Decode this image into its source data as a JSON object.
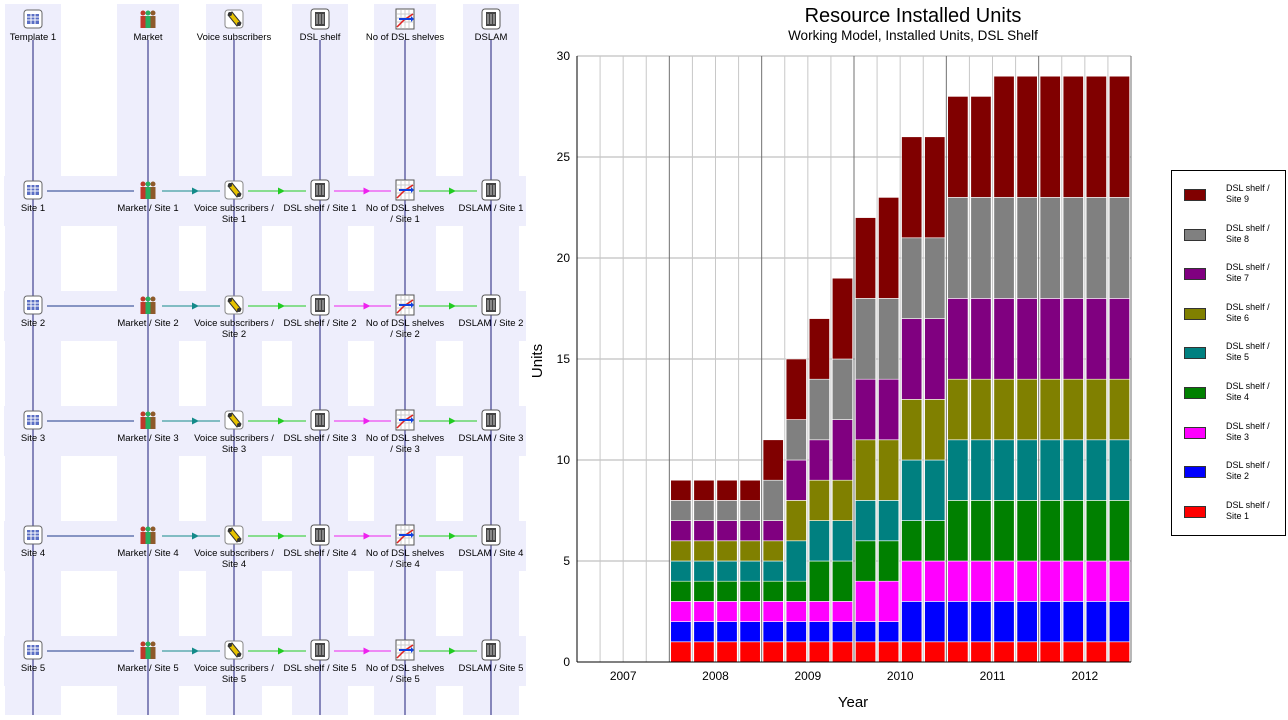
{
  "diagram": {
    "columns": [
      {
        "key": "template",
        "header": "Template 1",
        "icon": "template-icon"
      },
      {
        "key": "market",
        "header": "Market",
        "icon": "people-icon"
      },
      {
        "key": "voice",
        "header": "Voice subscribers",
        "icon": "phone-icon"
      },
      {
        "key": "shelf",
        "header": "DSL shelf",
        "icon": "shelf-icon"
      },
      {
        "key": "count",
        "header": "No of DSL shelves",
        "icon": "graph-icon"
      },
      {
        "key": "dslam",
        "header": "DSLAM",
        "icon": "shelf-icon"
      }
    ],
    "rows": [
      [
        "Site 1",
        "Market / Site 1",
        "Voice subscribers / Site 1",
        "DSL shelf / Site 1",
        "No of DSL shelves / Site 1",
        "DSLAM / Site 1"
      ],
      [
        "Site 2",
        "Market / Site 2",
        "Voice subscribers / Site 2",
        "DSL shelf / Site 2",
        "No of DSL shelves / Site 2",
        "DSLAM / Site 2"
      ],
      [
        "Site 3",
        "Market / Site 3",
        "Voice subscribers / Site 3",
        "DSL shelf / Site 3",
        "No of DSL shelves / Site 3",
        "DSLAM / Site 3"
      ],
      [
        "Site 4",
        "Market / Site 4",
        "Voice subscribers / Site 4",
        "DSL shelf / Site 4",
        "No of DSL shelves / Site 4",
        "DSLAM / Site 4"
      ],
      [
        "Site 5",
        "Market / Site 5",
        "Voice subscribers / Site 5",
        "DSL shelf / Site 5",
        "No of DSL shelves / Site 5",
        "DSLAM / Site 5"
      ]
    ],
    "link_colors": [
      "#1f3a8a",
      "#148a8a",
      "#22cc22",
      "#ee22ee",
      "#22cc22"
    ]
  },
  "chart_data": {
    "type": "bar",
    "stacked": true,
    "title": "Resource Installed Units",
    "subtitle": "Working Model, Installed Units, DSL Shelf",
    "xlabel": "Year",
    "ylabel": "Units",
    "ylim": [
      0,
      30
    ],
    "yticks": [
      0,
      5,
      10,
      15,
      20,
      25,
      30
    ],
    "year_labels": [
      "2007",
      "2008",
      "2009",
      "2010",
      "2011",
      "2012"
    ],
    "periods_per_year": 4,
    "grid": true,
    "legend_position": "right",
    "series": [
      {
        "name": "DSL shelf / Site 1",
        "color": "#ff0000",
        "values": [
          0,
          0,
          0,
          0,
          1,
          1,
          1,
          1,
          1,
          1,
          1,
          1,
          1,
          1,
          1,
          1,
          1,
          1,
          1,
          1,
          1,
          1,
          1,
          1
        ]
      },
      {
        "name": "DSL shelf / Site 2",
        "color": "#0000ff",
        "values": [
          0,
          0,
          0,
          0,
          1,
          1,
          1,
          1,
          1,
          1,
          1,
          1,
          1,
          1,
          2,
          2,
          2,
          2,
          2,
          2,
          2,
          2,
          2,
          2
        ]
      },
      {
        "name": "DSL shelf / Site 3",
        "color": "#ff00ff",
        "values": [
          0,
          0,
          0,
          0,
          1,
          1,
          1,
          1,
          1,
          1,
          1,
          1,
          2,
          2,
          2,
          2,
          2,
          2,
          2,
          2,
          2,
          2,
          2,
          2
        ]
      },
      {
        "name": "DSL shelf / Site 4",
        "color": "#008000",
        "values": [
          0,
          0,
          0,
          0,
          1,
          1,
          1,
          1,
          1,
          1,
          2,
          2,
          2,
          2,
          2,
          2,
          3,
          3,
          3,
          3,
          3,
          3,
          3,
          3
        ]
      },
      {
        "name": "DSL shelf / Site 5",
        "color": "#008080",
        "values": [
          0,
          0,
          0,
          0,
          1,
          1,
          1,
          1,
          1,
          2,
          2,
          2,
          2,
          2,
          3,
          3,
          3,
          3,
          3,
          3,
          3,
          3,
          3,
          3
        ]
      },
      {
        "name": "DSL shelf / Site 6",
        "color": "#808000",
        "values": [
          0,
          0,
          0,
          0,
          1,
          1,
          1,
          1,
          1,
          2,
          2,
          2,
          3,
          3,
          3,
          3,
          3,
          3,
          3,
          3,
          3,
          3,
          3,
          3
        ]
      },
      {
        "name": "DSL shelf / Site 7",
        "color": "#800080",
        "values": [
          0,
          0,
          0,
          0,
          1,
          1,
          1,
          1,
          1,
          2,
          2,
          3,
          3,
          3,
          4,
          4,
          4,
          4,
          4,
          4,
          4,
          4,
          4,
          4
        ]
      },
      {
        "name": "DSL shelf / Site 8",
        "color": "#808080",
        "values": [
          0,
          0,
          0,
          0,
          1,
          1,
          1,
          1,
          2,
          2,
          3,
          3,
          4,
          4,
          4,
          4,
          5,
          5,
          5,
          5,
          5,
          5,
          5,
          5
        ]
      },
      {
        "name": "DSL shelf / Site 9",
        "color": "#800000",
        "values": [
          0,
          0,
          0,
          0,
          1,
          1,
          1,
          1,
          2,
          3,
          3,
          4,
          4,
          5,
          5,
          5,
          5,
          5,
          6,
          6,
          6,
          6,
          6,
          6
        ]
      }
    ]
  }
}
